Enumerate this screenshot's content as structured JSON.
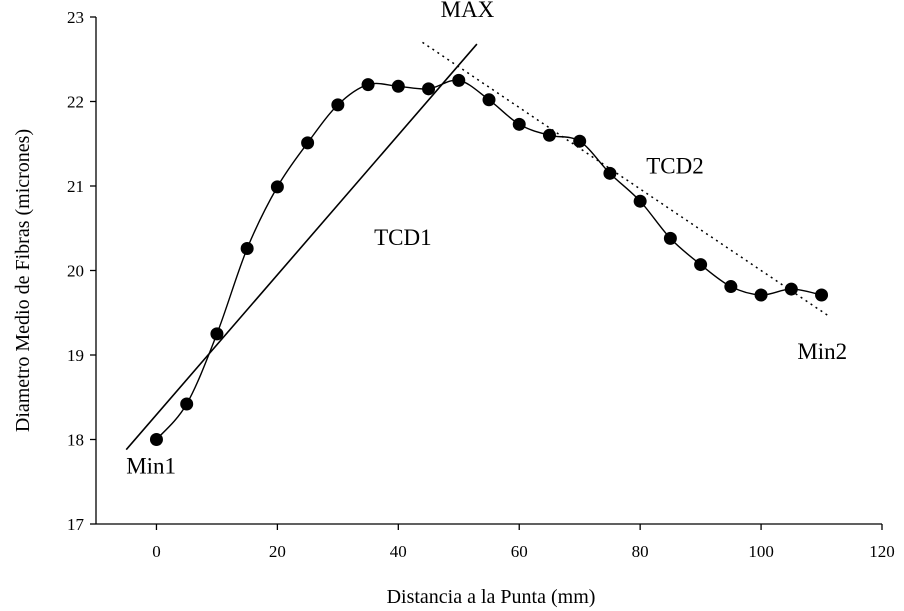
{
  "chart_data": {
    "type": "scatter",
    "xlabel": "Distancia a la Punta (mm)",
    "ylabel": "Diametro Medio de Fibras (micrones)",
    "xlim": [
      -10,
      120
    ],
    "ylim": [
      17,
      23
    ],
    "xticks": [
      0,
      20,
      40,
      60,
      80,
      100,
      120
    ],
    "yticks": [
      17,
      18,
      19,
      20,
      21,
      22,
      23
    ],
    "grid": false,
    "series": [
      {
        "x": [
          0,
          5,
          10,
          15,
          20,
          25,
          30,
          35,
          40,
          45,
          50,
          55,
          60,
          65,
          70,
          75,
          80,
          85,
          90,
          95,
          100,
          105,
          110
        ],
        "y": [
          18.0,
          18.42,
          19.25,
          20.26,
          20.99,
          21.51,
          21.96,
          22.2,
          22.18,
          22.15,
          22.25,
          22.02,
          21.73,
          21.6,
          21.53,
          21.15,
          20.82,
          20.38,
          20.07,
          19.81,
          19.71,
          19.78,
          19.71
        ],
        "color": "#000000"
      }
    ],
    "trendlines": [
      {
        "label": "TCD1",
        "style": "solid",
        "x": [
          -5,
          53
        ],
        "y": [
          17.88,
          22.68
        ]
      },
      {
        "label": "TCD2",
        "style": "dotted",
        "x": [
          44,
          111
        ],
        "y": [
          22.7,
          19.47
        ]
      }
    ],
    "annotations": [
      {
        "text": "MAX",
        "x": 47,
        "y": 23.0
      },
      {
        "text": "TCD1",
        "x": 36,
        "y": 20.3
      },
      {
        "text": "TCD2",
        "x": 81,
        "y": 21.15
      },
      {
        "text": "Min1",
        "x": -5,
        "y": 17.6
      },
      {
        "text": "Min2",
        "x": 106,
        "y": 18.95
      }
    ]
  }
}
